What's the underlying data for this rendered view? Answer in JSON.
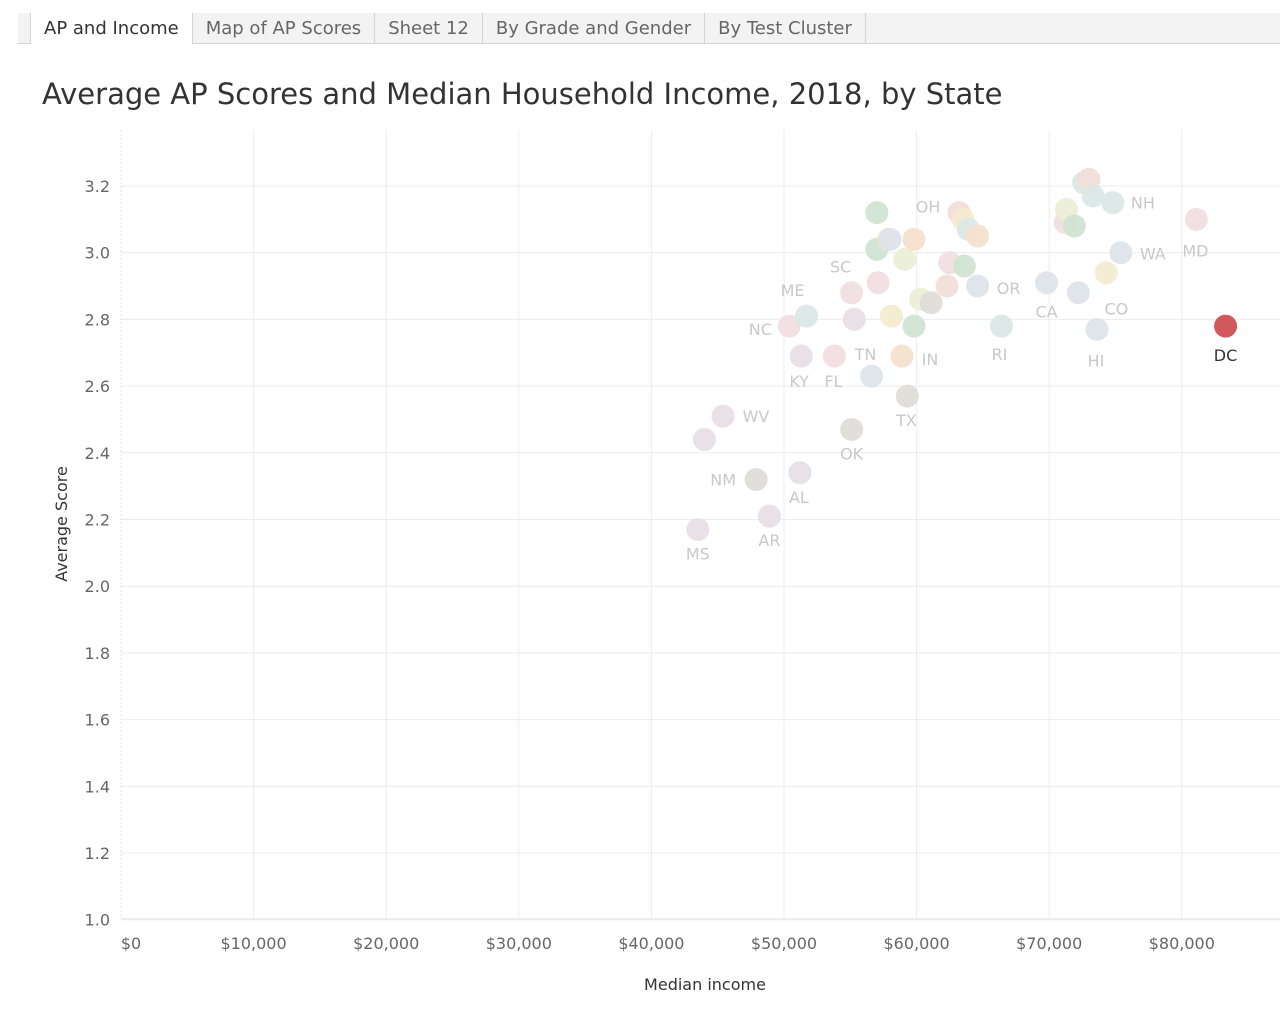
{
  "tabs": [
    {
      "label": "AP and Income",
      "active": true
    },
    {
      "label": "Map of AP Scores",
      "active": false
    },
    {
      "label": "Sheet 12",
      "active": false
    },
    {
      "label": "By Grade and Gender",
      "active": false
    },
    {
      "label": "By Test Cluster",
      "active": false
    }
  ],
  "colors": {
    "highlight": "#d1585b",
    "grid": "#ececec",
    "axis_text": "#666666",
    "label_text": "#c8c8c8",
    "palette": [
      "#cfe3d1",
      "#f3ddd8",
      "#f4ead0",
      "#dde3ea",
      "#e8dde6",
      "#e0dcd8",
      "#f5e0cc",
      "#dae7e5",
      "#f2dde0",
      "#ecefd5"
    ]
  },
  "chart_data": {
    "type": "scatter",
    "title": "Average AP Scores and Median Household Income, 2018, by State",
    "xlabel": "Median income",
    "ylabel": "Average Score",
    "xlim": [
      0,
      87000
    ],
    "ylim": [
      0.96,
      3.35
    ],
    "x_ticks": [
      0,
      10000,
      20000,
      30000,
      40000,
      50000,
      60000,
      70000,
      80000
    ],
    "x_tick_labels": [
      "$0",
      "$10,000",
      "$20,000",
      "$30,000",
      "$40,000",
      "$50,000",
      "$60,000",
      "$70,000",
      "$80,000"
    ],
    "y_ticks": [
      1.0,
      1.2,
      1.4,
      1.6,
      1.8,
      2.0,
      2.2,
      2.4,
      2.6,
      2.8,
      3.0,
      3.2
    ],
    "y_tick_labels": [
      "1.0",
      "1.2",
      "1.4",
      "1.6",
      "1.8",
      "2.0",
      "2.2",
      "2.4",
      "2.6",
      "2.8",
      "3.0",
      "3.2"
    ],
    "grid": true,
    "highlighted": "DC",
    "points": [
      {
        "label": "MS",
        "x": 43500,
        "y": 2.17,
        "c": 4
      },
      {
        "label": "AR",
        "x": 48900,
        "y": 2.21,
        "c": 4
      },
      {
        "label": "AL",
        "x": 51200,
        "y": 2.34,
        "c": 4
      },
      {
        "label": "NM",
        "x": 47900,
        "y": 2.32,
        "c": 5
      },
      {
        "label": "",
        "x": 44000,
        "y": 2.44,
        "c": 4
      },
      {
        "label": "WV",
        "x": 45400,
        "y": 2.51,
        "c": 4
      },
      {
        "label": "OK",
        "x": 55100,
        "y": 2.47,
        "c": 5
      },
      {
        "label": "TX",
        "x": 59300,
        "y": 2.57,
        "c": 5
      },
      {
        "label": "KY",
        "x": 51300,
        "y": 2.69,
        "c": 4
      },
      {
        "label": "FL",
        "x": 53800,
        "y": 2.69,
        "c": 8
      },
      {
        "label": "TN",
        "x": 56600,
        "y": 2.63,
        "c": 3
      },
      {
        "label": "IN",
        "x": 58900,
        "y": 2.69,
        "c": 6
      },
      {
        "label": "NC",
        "x": 50400,
        "y": 2.78,
        "c": 8
      },
      {
        "label": "ME",
        "x": 51700,
        "y": 2.81,
        "c": 7
      },
      {
        "label": "",
        "x": 55300,
        "y": 2.8,
        "c": 4
      },
      {
        "label": "SC",
        "x": 55100,
        "y": 2.88,
        "c": 8
      },
      {
        "label": "",
        "x": 57100,
        "y": 2.91,
        "c": 8
      },
      {
        "label": "",
        "x": 58100,
        "y": 2.81,
        "c": 2
      },
      {
        "label": "",
        "x": 59800,
        "y": 2.78,
        "c": 0
      },
      {
        "label": "",
        "x": 60300,
        "y": 2.86,
        "c": 9
      },
      {
        "label": "",
        "x": 61100,
        "y": 2.85,
        "c": 5
      },
      {
        "label": "",
        "x": 62300,
        "y": 2.9,
        "c": 1
      },
      {
        "label": "",
        "x": 62500,
        "y": 2.97,
        "c": 8
      },
      {
        "label": "",
        "x": 59100,
        "y": 2.98,
        "c": 9
      },
      {
        "label": "",
        "x": 57000,
        "y": 3.01,
        "c": 0
      },
      {
        "label": "",
        "x": 57900,
        "y": 3.04,
        "c": 6
      },
      {
        "label": "",
        "x": 59800,
        "y": 3.04,
        "c": 6
      },
      {
        "label": "",
        "x": 57000,
        "y": 3.12,
        "c": 0
      },
      {
        "label": "OH",
        "x": 58000,
        "y": 3.04,
        "c": 3
      },
      {
        "label": "",
        "x": 63200,
        "y": 3.12,
        "c": 1
      },
      {
        "label": "",
        "x": 63500,
        "y": 3.1,
        "c": 2
      },
      {
        "label": "",
        "x": 63900,
        "y": 3.07,
        "c": 7
      },
      {
        "label": "",
        "x": 64600,
        "y": 3.05,
        "c": 6
      },
      {
        "label": "",
        "x": 63600,
        "y": 2.96,
        "c": 0
      },
      {
        "label": "OR",
        "x": 64600,
        "y": 2.9,
        "c": 3
      },
      {
        "label": "RI",
        "x": 66400,
        "y": 2.78,
        "c": 7
      },
      {
        "label": "CA",
        "x": 69800,
        "y": 2.91,
        "c": 3
      },
      {
        "label": "CO",
        "x": 72200,
        "y": 2.88,
        "c": 3
      },
      {
        "label": "",
        "x": 74300,
        "y": 2.94,
        "c": 2
      },
      {
        "label": "HI",
        "x": 73600,
        "y": 2.77,
        "c": 3
      },
      {
        "label": "",
        "x": 71200,
        "y": 3.09,
        "c": 8
      },
      {
        "label": "",
        "x": 71300,
        "y": 3.13,
        "c": 9
      },
      {
        "label": "",
        "x": 71900,
        "y": 3.08,
        "c": 0
      },
      {
        "label": "",
        "x": 72600,
        "y": 3.21,
        "c": 7
      },
      {
        "label": "",
        "x": 73000,
        "y": 3.22,
        "c": 1
      },
      {
        "label": "",
        "x": 73300,
        "y": 3.17,
        "c": 7
      },
      {
        "label": "NH",
        "x": 74800,
        "y": 3.15,
        "c": 7
      },
      {
        "label": "WA",
        "x": 75400,
        "y": 3.0,
        "c": 3
      },
      {
        "label": "MD",
        "x": 81100,
        "y": 3.1,
        "c": 8
      },
      {
        "label": "DC",
        "x": 83300,
        "y": 2.78,
        "c": -1
      }
    ]
  }
}
